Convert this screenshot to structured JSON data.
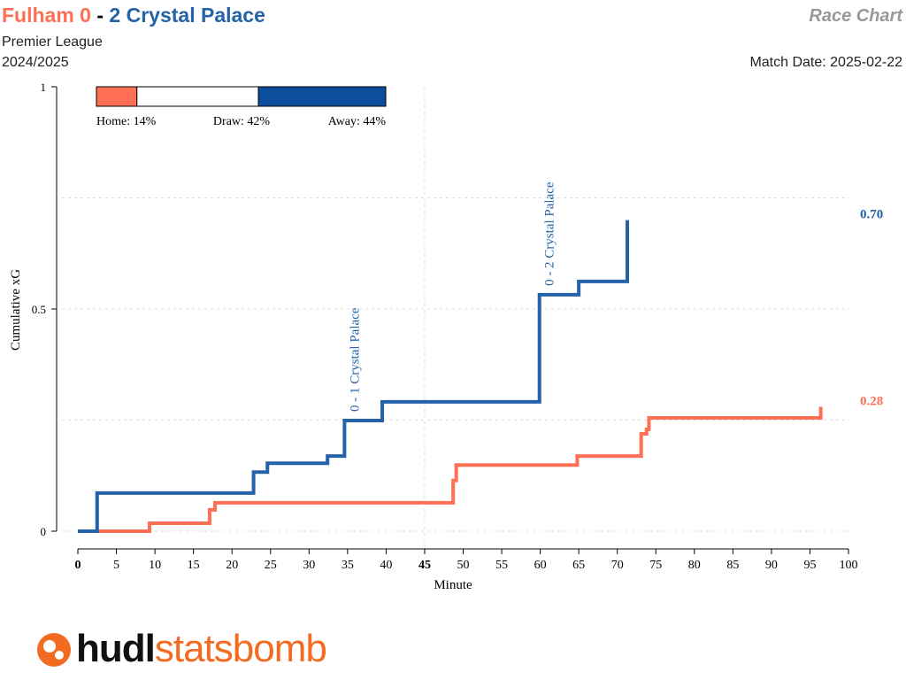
{
  "header": {
    "home_team": "Fulham",
    "home_score": "0",
    "sep": "-",
    "away_score": "2",
    "away_team": "Crystal Palace",
    "competition": "Premier League",
    "season": "2024/2025",
    "chart_type": "Race Chart",
    "match_date": "Match Date: 2025-02-22"
  },
  "colors": {
    "home": "#FF6F56",
    "away": "#2463A8"
  },
  "logo": {
    "part1": "hudl",
    "part2": "statsbomb"
  },
  "chart_data": {
    "type": "line",
    "xlabel": "Minute",
    "ylabel": "Cumulative xG",
    "xlim": [
      0,
      100
    ],
    "ylim": [
      0,
      1
    ],
    "xticks": [
      0,
      5,
      10,
      15,
      20,
      25,
      30,
      35,
      40,
      45,
      50,
      55,
      60,
      65,
      70,
      75,
      80,
      85,
      90,
      95,
      100
    ],
    "yticks": [
      0,
      0.5,
      1
    ],
    "ytick_labels": [
      "0",
      "0.5",
      "1"
    ],
    "grid": {
      "x": [
        45
      ],
      "y": [
        0.25,
        0.5,
        0.75
      ]
    },
    "series": [
      {
        "name": "Fulham",
        "side": "home",
        "final_label": "0.28",
        "points": [
          [
            0,
            0
          ],
          [
            9.3,
            0.018
          ],
          [
            17.1,
            0.048
          ],
          [
            17.8,
            0.064
          ],
          [
            48.7,
            0.114
          ],
          [
            49.1,
            0.149
          ],
          [
            64.8,
            0.169
          ],
          [
            73.1,
            0.219
          ],
          [
            73.8,
            0.229
          ],
          [
            74.1,
            0.255
          ],
          [
            96.4,
            0.28
          ]
        ]
      },
      {
        "name": "Crystal Palace",
        "side": "away",
        "final_label": "0.70",
        "points": [
          [
            0,
            0
          ],
          [
            2.5,
            0.086
          ],
          [
            22.8,
            0.133
          ],
          [
            24.6,
            0.153
          ],
          [
            32.4,
            0.169
          ],
          [
            34.6,
            0.249
          ],
          [
            39.5,
            0.291
          ],
          [
            59.9,
            0.532
          ],
          [
            65.0,
            0.562
          ],
          [
            71.3,
            0.7
          ]
        ]
      }
    ],
    "annotations": [
      {
        "minute": 34.6,
        "xg": 0.249,
        "text": "0 - 1 Crystal Palace"
      },
      {
        "minute": 59.9,
        "xg": 0.532,
        "text": "0 - 2 Crystal Palace"
      }
    ],
    "win_probability": {
      "home": 14,
      "draw": 42,
      "away": 44,
      "home_label": "Home: 14%",
      "draw_label": "Draw: 42%",
      "away_label": "Away: 44%"
    }
  }
}
